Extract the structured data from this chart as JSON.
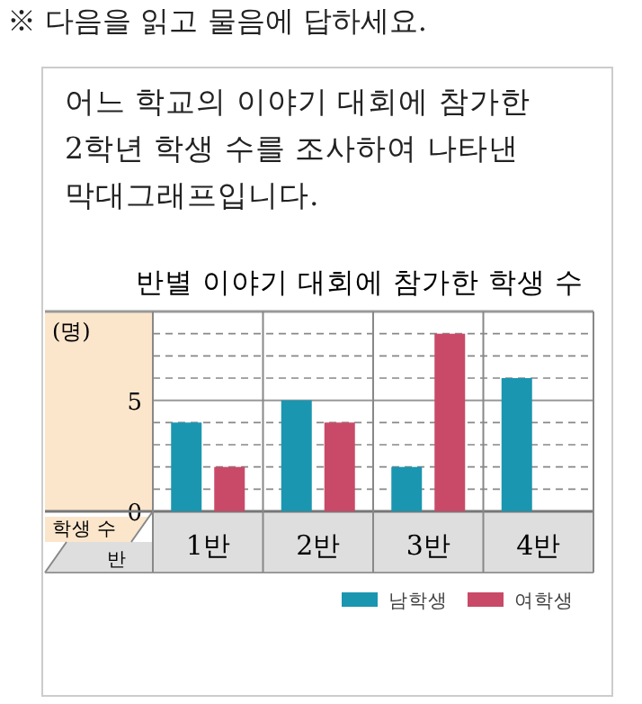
{
  "chart_data": {
    "type": "bar",
    "title": "반별 이야기 대회에 참가한 학생 수",
    "subtitle": "어느 학교의 이야기 대회에 참가한 2학년 학생 수를 조사하여 나타낸 막대그래프입니다.",
    "annotations": [
      "※ 다음을 읽고 물음에 답하세요.",
      "(명)"
    ],
    "ylabel": "학생 수",
    "xlabel": "반",
    "categories": [
      "1반",
      "2반",
      "3반",
      "4반"
    ],
    "series": [
      {
        "name": "남학생",
        "color": "#1a96b0",
        "values": [
          4,
          5,
          2,
          6
        ]
      },
      {
        "name": "여학생",
        "color": "#c94a68",
        "values": [
          2,
          4,
          8,
          0
        ]
      }
    ],
    "ylim": [
      0,
      9
    ],
    "yticks": [
      0,
      {
        "value": 1,
        "label": null
      },
      {
        "value": 2,
        "label": null
      },
      {
        "value": 3,
        "label": null
      },
      {
        "value": 4,
        "label": null
      },
      5,
      {
        "value": 6,
        "label": null
      },
      {
        "value": 7,
        "label": null
      },
      {
        "value": 8,
        "label": null
      },
      {
        "value": 9,
        "label": null
      }
    ],
    "ref_lines": [
      {
        "axis": "y",
        "value": 5,
        "color": "#999999"
      }
    ],
    "grid": "y",
    "legend": "bottom right"
  }
}
